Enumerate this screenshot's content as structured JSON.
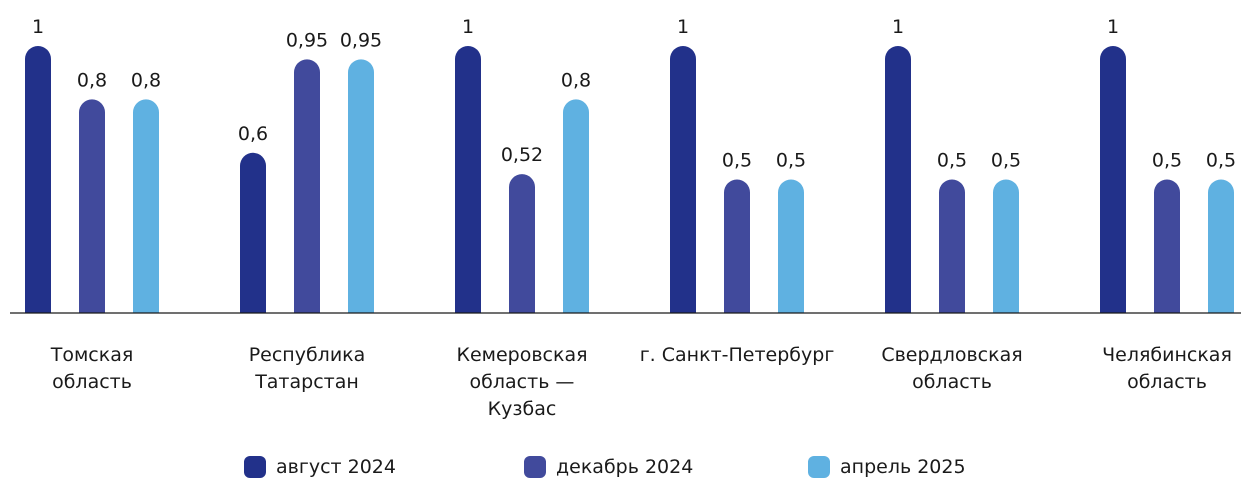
{
  "chart_data": {
    "type": "bar",
    "categories": [
      [
        "Томская",
        "область"
      ],
      [
        "Республика",
        "Татарстан"
      ],
      [
        "Кемеровская",
        "область —",
        "Кузбас"
      ],
      [
        "г. Санкт-Петербург"
      ],
      [
        "Свердловская",
        "область"
      ],
      [
        "Челябинская",
        "область"
      ]
    ],
    "series": [
      {
        "name": "август 2024",
        "color": "#22318a",
        "values": [
          1,
          0.6,
          1,
          1,
          1,
          1
        ],
        "labels": [
          "1",
          "0,6",
          "1",
          "1",
          "1",
          "1"
        ]
      },
      {
        "name": "декабрь 2024",
        "color": "#414a9c",
        "values": [
          0.8,
          0.95,
          0.52,
          0.5,
          0.5,
          0.5
        ],
        "labels": [
          "0,8",
          "0,95",
          "0,52",
          "0,5",
          "0,5",
          "0,5"
        ]
      },
      {
        "name": "апрель 2025",
        "color": "#5fb1e1",
        "values": [
          0.8,
          0.95,
          0.8,
          0.5,
          0.5,
          0.5
        ],
        "labels": [
          "0,8",
          "0,95",
          "0,8",
          "0,5",
          "0,5",
          "0,5"
        ]
      }
    ],
    "ylim": [
      0,
      1
    ],
    "grid": false,
    "legend_position": "bottom"
  }
}
